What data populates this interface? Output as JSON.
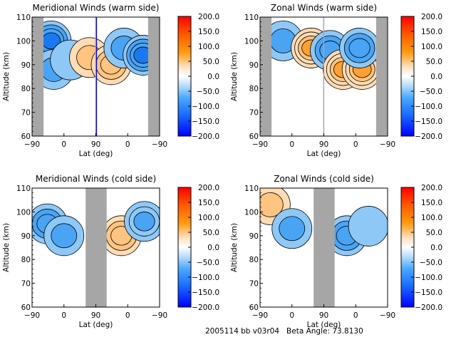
{
  "figure": {
    "footer_left": "2005114 bb v03r04",
    "footer_right": "Beta Angle: 73.8130"
  },
  "colorbar": {
    "ticks": [
      "200.0",
      "150.0",
      "100.0",
      "50.0",
      "0.0",
      "−50.0",
      "−100.0",
      "−150.0",
      "−200.0"
    ],
    "range": [
      -200,
      200
    ],
    "colors": [
      "#0000ff",
      "#1e90ff",
      "#87cefa",
      "#ffffff",
      "#ffdab9",
      "#ff9a00",
      "#ff0000"
    ]
  },
  "chart_data": [
    {
      "type": "heatmap",
      "title": "Meridional Winds (warm side)",
      "xlabel": "Lat (deg)",
      "ylabel": "Altitude (km)",
      "xticks": [
        "−90",
        "0",
        "90",
        "0",
        "−90"
      ],
      "yticks": [
        "110",
        "100",
        "90",
        "80",
        "70",
        "60"
      ],
      "ylim": [
        60,
        110
      ],
      "gray_regions_lat_index": [
        [
          0,
          0.09
        ],
        [
          0.495,
          0.5
        ],
        [
          0.91,
          1.0
        ]
      ],
      "features": [
        {
          "x": 0.15,
          "y": 100,
          "value": -120
        },
        {
          "x": 0.17,
          "y": 88,
          "value": -70
        },
        {
          "x": 0.3,
          "y": 92,
          "value": -30
        },
        {
          "x": 0.45,
          "y": 93,
          "value": 60
        },
        {
          "x": 0.62,
          "y": 90,
          "value": 90
        },
        {
          "x": 0.72,
          "y": 97,
          "value": -70
        },
        {
          "x": 0.87,
          "y": 94,
          "value": -120
        }
      ]
    },
    {
      "type": "heatmap",
      "title": "Zonal Winds (warm side)",
      "xlabel": "Lat (deg)",
      "ylabel": "Altitude (km)",
      "xticks": [
        "−90",
        "0",
        "90",
        "0",
        "−90"
      ],
      "yticks": [
        "110",
        "100",
        "90",
        "80",
        "70",
        "60"
      ],
      "ylim": [
        60,
        110
      ],
      "gray_regions_lat_index": [
        [
          0,
          0.09
        ],
        [
          0.495,
          0.5
        ],
        [
          0.91,
          1.0
        ]
      ],
      "features": [
        {
          "x": 0.18,
          "y": 100,
          "value": -60
        },
        {
          "x": 0.4,
          "y": 97,
          "value": 110
        },
        {
          "x": 0.55,
          "y": 96,
          "value": -90
        },
        {
          "x": 0.65,
          "y": 88,
          "value": 110
        },
        {
          "x": 0.8,
          "y": 88,
          "value": 110
        },
        {
          "x": 0.78,
          "y": 97,
          "value": -90
        }
      ]
    },
    {
      "type": "heatmap",
      "title": "Meridional Winds (cold side)",
      "xlabel": "Lat (deg)",
      "ylabel": "Altitude (km)",
      "xticks": [
        "−90",
        "0",
        "90",
        "0",
        "−90"
      ],
      "yticks": [
        "110",
        "100",
        "90",
        "80",
        "70",
        "60"
      ],
      "ylim": [
        60,
        110
      ],
      "gray_regions_lat_index": [
        [
          0.42,
          0.585
        ]
      ],
      "features": [
        {
          "x": 0.12,
          "y": 95,
          "value": -90
        },
        {
          "x": 0.25,
          "y": 90,
          "value": -70
        },
        {
          "x": 0.7,
          "y": 90,
          "value": 90
        },
        {
          "x": 0.88,
          "y": 96,
          "value": -80
        }
      ]
    },
    {
      "type": "heatmap",
      "title": "Zonal Winds (cold side)",
      "xlabel": "Lat (deg)",
      "ylabel": "Altitude (km)",
      "xticks": [
        "−90",
        "0",
        "90",
        "0",
        "−90"
      ],
      "yticks": [
        "110",
        "100",
        "90",
        "80",
        "70",
        "60"
      ],
      "ylim": [
        60,
        110
      ],
      "gray_regions_lat_index": [
        [
          0.42,
          0.585
        ]
      ],
      "features": [
        {
          "x": 0.08,
          "y": 103,
          "value": 60
        },
        {
          "x": 0.25,
          "y": 93,
          "value": -70
        },
        {
          "x": 0.68,
          "y": 90,
          "value": -90
        },
        {
          "x": 0.85,
          "y": 94,
          "value": -40
        }
      ]
    }
  ]
}
